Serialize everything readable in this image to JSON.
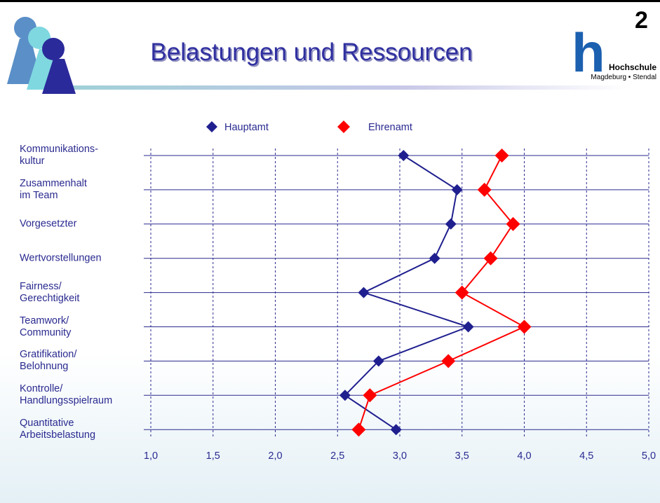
{
  "chart_data": {
    "type": "dot-line",
    "title": "Belastungen und Ressourcen",
    "categories": [
      "Kommunikations-\nkultur",
      "Zusammenhalt\nim Team",
      "Vorgesetzter",
      "Wertvorstellungen",
      "Fairness/\nGerechtigkeit",
      "Teamwork/\nCommunity",
      "Gratifikation/\nBelohnung",
      "Kontrolle/\nHandlungsspielraum",
      "Quantitative\nArbeitsbelastung"
    ],
    "series": [
      {
        "name": "Hauptamt",
        "color": "#1f1f8f",
        "values": [
          3.03,
          3.46,
          3.41,
          3.28,
          2.71,
          3.55,
          2.83,
          2.56,
          2.97
        ]
      },
      {
        "name": "Ehrenamt",
        "color": "#ff0000",
        "values": [
          3.82,
          3.68,
          3.91,
          3.73,
          3.5,
          4.0,
          3.39,
          2.76,
          2.67
        ]
      }
    ],
    "xlim": [
      1.0,
      5.0
    ],
    "xticks": [
      {
        "value": 1.0,
        "label": "1,0"
      },
      {
        "value": 1.5,
        "label": "1,5"
      },
      {
        "value": 2.0,
        "label": "2,0"
      },
      {
        "value": 2.5,
        "label": "2,5"
      },
      {
        "value": 3.0,
        "label": "3,0"
      },
      {
        "value": 3.5,
        "label": "3,5"
      },
      {
        "value": 4.0,
        "label": "4,0"
      },
      {
        "value": 4.5,
        "label": "4,5"
      },
      {
        "value": 5.0,
        "label": "5,0"
      }
    ],
    "grid": true,
    "legend": "top"
  },
  "logo": {
    "letter": "h",
    "superscript": "2",
    "name": "Hochschule",
    "place": "Magdeburg • Stendal"
  }
}
